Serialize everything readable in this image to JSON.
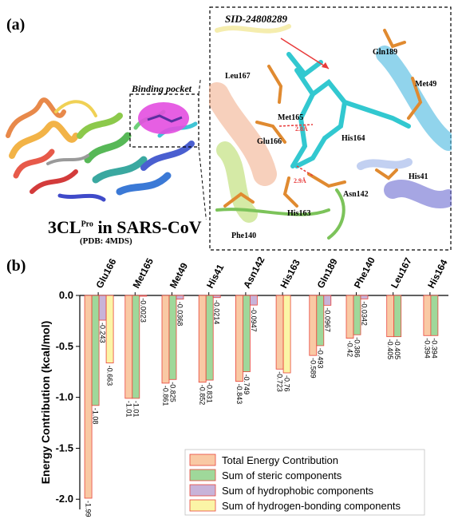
{
  "figure": {
    "panel_a_label": "(a)",
    "panel_b_label": "(b)",
    "protein_caption_main": "3CL",
    "protein_caption_sup": "Pro",
    "protein_caption_rest": " in SARS-CoV",
    "protein_caption_sub": "(PDB: 4MDS)",
    "binding_pocket_label": "Binding pocket",
    "ligand_label": "SID-24808289",
    "residue_labels": [
      "Gln189",
      "Leu167",
      "Met49",
      "Met165",
      "Glu166",
      "His164",
      "His41",
      "Asn142",
      "His163",
      "Phe140"
    ],
    "distance_labels": [
      "2.8Å",
      "2.9Å"
    ]
  },
  "chart_data": {
    "type": "bar",
    "categories": [
      "Glu166",
      "Met165",
      "Met49",
      "His41",
      "Asn142",
      "His163",
      "Gln189",
      "Phe140",
      "Leu167",
      "His164"
    ],
    "series": [
      {
        "name": "Total Energy Contribution",
        "color": "#f9c9a4",
        "stroke": "#e8453c",
        "values": [
          -1.99,
          -1.01,
          -0.861,
          -0.852,
          -0.843,
          -0.723,
          -0.589,
          -0.42,
          -0.405,
          -0.394
        ],
        "labels": [
          "-1.99",
          "-1.01",
          "-0.861",
          "-0.852",
          "-0.843",
          "-0.723",
          "-0.589",
          "-0.42",
          "-0.405",
          "-0.394"
        ]
      },
      {
        "name": "Sum of steric components",
        "color": "#9fd89a",
        "stroke": "#e8453c",
        "values": [
          -1.08,
          -1.01,
          -0.825,
          -0.831,
          -0.749,
          null,
          -0.493,
          -0.386,
          -0.405,
          -0.394
        ],
        "labels": [
          "-1.08",
          "-1.01",
          "-0.825",
          "-0.831",
          "-0.749",
          "",
          "-0.493",
          "-0.386",
          "-0.405",
          "-0.394"
        ]
      },
      {
        "name": "Sum of hydrophobic components",
        "color": "#c8b3d9",
        "stroke": "#e8453c",
        "values": [
          -0.243,
          -0.0023,
          -0.0368,
          -0.0214,
          -0.0947,
          null,
          -0.0967,
          -0.0342,
          null,
          null
        ],
        "labels": [
          "-0.243",
          "-0.0023",
          "-0.0368",
          "-0.0214",
          "-0.0947",
          "",
          "-0.0967",
          "-0.0342",
          "",
          ""
        ]
      },
      {
        "name": "Sum of hydrogen-bonding components",
        "color": "#fbf5a6",
        "stroke": "#e8453c",
        "values": [
          -0.663,
          null,
          null,
          null,
          null,
          -0.76,
          null,
          null,
          null,
          null
        ],
        "labels": [
          "-0.663",
          "",
          "",
          "",
          "",
          "-0.76",
          "",
          "",
          "",
          ""
        ]
      }
    ],
    "ylabel": "Energy Contribution (kcal/mol)",
    "ylim": [
      -2.1,
      0.0
    ],
    "yticks": [
      "0.0",
      "-0.5",
      "-1.0",
      "-1.5",
      "-2.0"
    ],
    "ytick_values": [
      0.0,
      -0.5,
      -1.0,
      -1.5,
      -2.0
    ],
    "legend_position": "bottom-right",
    "xaxis_position": "top"
  }
}
